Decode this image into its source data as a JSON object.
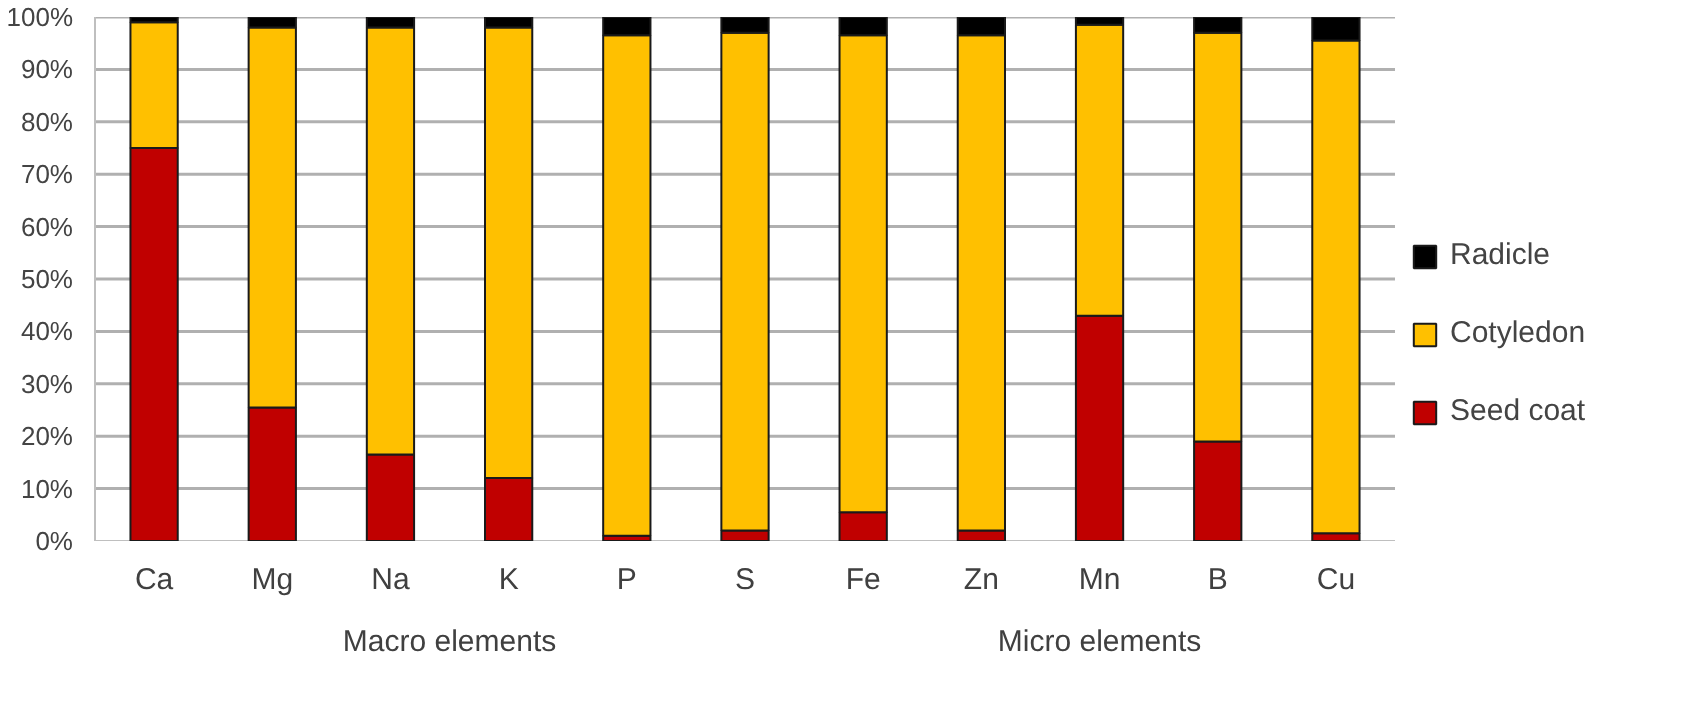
{
  "chart_data": {
    "type": "bar",
    "stacked": true,
    "categories": [
      "Ca",
      "Mg",
      "Na",
      "K",
      "P",
      "S",
      "Fe",
      "Zn",
      "Mn",
      "B",
      "Cu"
    ],
    "series": [
      {
        "name": "Seed coat",
        "color": "#c00000",
        "values": [
          75,
          25.5,
          16.5,
          12,
          1,
          2,
          5.5,
          2,
          43,
          19,
          1.5
        ]
      },
      {
        "name": "Cotyledon",
        "color": "#ffc000",
        "values": [
          24,
          72.5,
          81.5,
          86,
          95.5,
          95,
          91,
          94.5,
          55.5,
          78,
          94
        ]
      },
      {
        "name": "Radicle",
        "color": "#000000",
        "values": [
          1,
          2,
          2,
          2,
          3.5,
          3,
          3.5,
          3.5,
          1.5,
          3,
          4.5
        ]
      }
    ],
    "ylim": [
      0,
      100
    ],
    "yticks": [
      {
        "value": 0,
        "label": "0%"
      },
      {
        "value": 10,
        "label": "10%"
      },
      {
        "value": 20,
        "label": "20%"
      },
      {
        "value": 30,
        "label": "30%"
      },
      {
        "value": 40,
        "label": "40%"
      },
      {
        "value": 50,
        "label": "50%"
      },
      {
        "value": 60,
        "label": "60%"
      },
      {
        "value": 70,
        "label": "70%"
      },
      {
        "value": 80,
        "label": "80%"
      },
      {
        "value": 90,
        "label": "90%"
      },
      {
        "value": 100,
        "label": "100%"
      }
    ],
    "annotations": [
      "Macro elements",
      "Micro elements"
    ],
    "grid": "y",
    "legend": "right"
  }
}
